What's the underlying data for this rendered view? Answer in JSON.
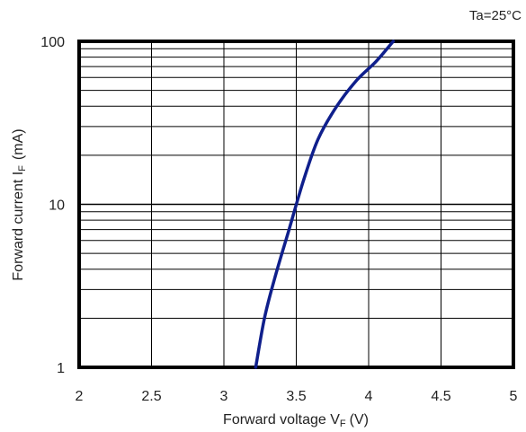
{
  "chart_data": {
    "type": "line",
    "annotation": "Ta=25°C",
    "xlabel": {
      "main": "Forward voltage V",
      "sub": "F",
      "unit": "(V)"
    },
    "ylabel": {
      "main": "Forward current  I",
      "sub": "F",
      "unit": "(mA)"
    },
    "xlim": [
      2,
      5
    ],
    "ylim": [
      1,
      100
    ],
    "yscale": "log",
    "grid": true,
    "x_ticks": [
      "2",
      "2.5",
      "3",
      "3.5",
      "4",
      "4.5",
      "5"
    ],
    "y_ticks": [
      "1",
      "10",
      "100"
    ],
    "series": [
      {
        "color": "#0f1f8c",
        "x": [
          3.22,
          3.28,
          3.35,
          3.45,
          3.55,
          3.65,
          3.78,
          3.92,
          4.05,
          4.17
        ],
        "y": [
          1,
          2,
          3.5,
          7,
          14,
          25,
          40,
          58,
          75,
          100
        ]
      }
    ]
  }
}
